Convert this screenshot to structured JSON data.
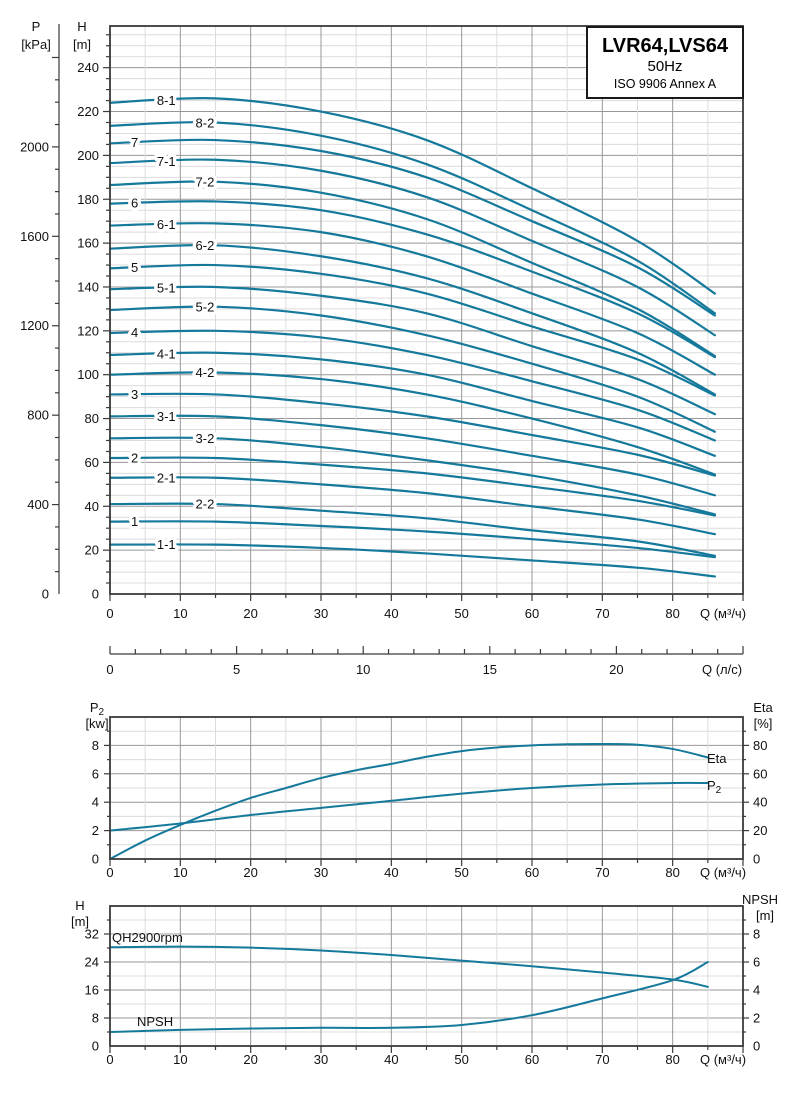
{
  "title_box": {
    "model": "LVR64,LVS64",
    "frequency": "50Hz",
    "standard": "ISO 9906 Annex A"
  },
  "colors": {
    "curve": "#15799b",
    "grid_minor": "#dcdcdc",
    "grid_major": "#989898",
    "axis_line": "#3a3a3a",
    "text": "#111111"
  },
  "chart_data": [
    {
      "type": "line",
      "id": "qh-family",
      "title": "Head vs flow curves for stage variants",
      "x": {
        "label": "Q (м³/ч)",
        "range": [
          0,
          90
        ],
        "ticks": [
          0,
          10,
          20,
          30,
          40,
          50,
          60,
          70,
          80
        ],
        "minor_step": 5
      },
      "x_secondary": {
        "label": "Q (л/с)",
        "ticks": [
          0,
          5,
          10,
          15,
          20
        ],
        "m3h_per_unit": 3.6,
        "minor_step": 1
      },
      "y_left": {
        "label": "H",
        "unit": "[m]",
        "range": [
          0,
          259
        ],
        "ticks": [
          0,
          20,
          40,
          60,
          80,
          100,
          120,
          140,
          160,
          180,
          200,
          220,
          240
        ],
        "minor_step": 5
      },
      "y_outer": {
        "label": "P",
        "unit": "[kPa]",
        "ticks": [
          0,
          400,
          800,
          1200,
          1600,
          2000
        ],
        "minor_step": 100,
        "kpa_per_m": 9.81
      },
      "grid": true,
      "series": [
        {
          "name": "8-1",
          "label_q": 8,
          "points": [
            [
              0,
              224
            ],
            [
              15,
              226
            ],
            [
              30,
              220
            ],
            [
              45,
              207
            ],
            [
              60,
              185
            ],
            [
              75,
              161
            ],
            [
              86,
              137
            ]
          ]
        },
        {
          "name": "8-2",
          "label_q": 13.5,
          "points": [
            [
              0,
              213.5
            ],
            [
              15,
              215
            ],
            [
              30,
              209
            ],
            [
              45,
              196
            ],
            [
              60,
              175
            ],
            [
              75,
              152
            ],
            [
              86,
              128
            ]
          ]
        },
        {
          "name": "7",
          "label_q": 3.5,
          "points": [
            [
              0,
              205.5
            ],
            [
              15,
              207
            ],
            [
              30,
              202
            ],
            [
              45,
              190
            ],
            [
              60,
              170
            ],
            [
              75,
              149
            ],
            [
              86,
              127
            ]
          ]
        },
        {
          "name": "7-1",
          "label_q": 8,
          "points": [
            [
              0,
              196.5
            ],
            [
              15,
              198
            ],
            [
              30,
              193
            ],
            [
              45,
              181
            ],
            [
              60,
              161
            ],
            [
              75,
              140
            ],
            [
              86,
              118
            ]
          ]
        },
        {
          "name": "7-2",
          "label_q": 13.5,
          "points": [
            [
              0,
              186.5
            ],
            [
              15,
              188
            ],
            [
              30,
              183
            ],
            [
              45,
              171
            ],
            [
              60,
              151
            ],
            [
              75,
              130
            ],
            [
              86,
              108.5
            ]
          ]
        },
        {
          "name": "6",
          "label_q": 3.5,
          "points": [
            [
              0,
              178
            ],
            [
              15,
              179
            ],
            [
              30,
              175
            ],
            [
              45,
              164
            ],
            [
              60,
              147
            ],
            [
              75,
              128
            ],
            [
              86,
              108
            ]
          ]
        },
        {
          "name": "6-1",
          "label_q": 8,
          "points": [
            [
              0,
              168
            ],
            [
              15,
              169
            ],
            [
              30,
              165
            ],
            [
              45,
              154
            ],
            [
              60,
              137
            ],
            [
              75,
              119
            ],
            [
              86,
              100
            ]
          ]
        },
        {
          "name": "6-2",
          "label_q": 13.5,
          "points": [
            [
              0,
              157.5
            ],
            [
              15,
              159
            ],
            [
              30,
              154
            ],
            [
              45,
              144
            ],
            [
              60,
              128
            ],
            [
              75,
              110
            ],
            [
              86,
              91
            ]
          ]
        },
        {
          "name": "5",
          "label_q": 3.5,
          "points": [
            [
              0,
              148.5
            ],
            [
              15,
              150
            ],
            [
              30,
              146
            ],
            [
              45,
              137
            ],
            [
              60,
              122
            ],
            [
              75,
              107
            ],
            [
              86,
              90.5
            ]
          ]
        },
        {
          "name": "5-1",
          "label_q": 8,
          "points": [
            [
              0,
              139
            ],
            [
              15,
              140
            ],
            [
              30,
              136
            ],
            [
              45,
              128
            ],
            [
              60,
              113
            ],
            [
              75,
              98
            ],
            [
              86,
              82
            ]
          ]
        },
        {
          "name": "5-2",
          "label_q": 13.5,
          "points": [
            [
              0,
              129.5
            ],
            [
              15,
              131
            ],
            [
              30,
              127
            ],
            [
              45,
              118
            ],
            [
              60,
              105
            ],
            [
              75,
              90
            ],
            [
              86,
              74
            ]
          ]
        },
        {
          "name": "4",
          "label_q": 3.5,
          "points": [
            [
              0,
              119
            ],
            [
              15,
              120
            ],
            [
              30,
              117
            ],
            [
              45,
              109
            ],
            [
              60,
              97
            ],
            [
              75,
              84
            ],
            [
              86,
              70
            ]
          ]
        },
        {
          "name": "4-1",
          "label_q": 8,
          "points": [
            [
              0,
              109
            ],
            [
              15,
              110
            ],
            [
              30,
              107
            ],
            [
              45,
              100
            ],
            [
              60,
              88
            ],
            [
              75,
              76
            ],
            [
              86,
              63
            ]
          ]
        },
        {
          "name": "4-2",
          "label_q": 13.5,
          "points": [
            [
              0,
              100
            ],
            [
              15,
              101
            ],
            [
              30,
              98
            ],
            [
              45,
              91
            ],
            [
              60,
              80
            ],
            [
              75,
              67
            ],
            [
              86,
              54.5
            ]
          ]
        },
        {
          "name": "3",
          "label_q": 3.5,
          "points": [
            [
              0,
              91
            ],
            [
              15,
              91
            ],
            [
              30,
              87
            ],
            [
              45,
              81
            ],
            [
              60,
              72.5
            ],
            [
              75,
              63.5
            ],
            [
              86,
              54
            ]
          ]
        },
        {
          "name": "3-1",
          "label_q": 8,
          "points": [
            [
              0,
              81
            ],
            [
              15,
              81
            ],
            [
              30,
              77
            ],
            [
              45,
              71
            ],
            [
              60,
              63
            ],
            [
              75,
              54.5
            ],
            [
              86,
              45
            ]
          ]
        },
        {
          "name": "3-2",
          "label_q": 13.5,
          "points": [
            [
              0,
              71
            ],
            [
              15,
              71
            ],
            [
              30,
              67
            ],
            [
              45,
              61
            ],
            [
              60,
              54
            ],
            [
              75,
              45
            ],
            [
              86,
              36.3
            ]
          ]
        },
        {
          "name": "2",
          "label_q": 3.5,
          "points": [
            [
              0,
              62
            ],
            [
              15,
              62
            ],
            [
              30,
              59
            ],
            [
              45,
              55
            ],
            [
              60,
              49
            ],
            [
              75,
              42.5
            ],
            [
              86,
              35.8
            ]
          ]
        },
        {
          "name": "2-1",
          "label_q": 8,
          "points": [
            [
              0,
              53
            ],
            [
              15,
              53
            ],
            [
              30,
              50
            ],
            [
              45,
              46
            ],
            [
              60,
              40
            ],
            [
              75,
              34
            ],
            [
              86,
              27.3
            ]
          ]
        },
        {
          "name": "2-2",
          "label_q": 13.5,
          "points": [
            [
              0,
              41
            ],
            [
              15,
              41
            ],
            [
              30,
              38
            ],
            [
              45,
              34.5
            ],
            [
              60,
              29
            ],
            [
              75,
              24
            ],
            [
              86,
              17.4
            ]
          ]
        },
        {
          "name": "1",
          "label_q": 3.5,
          "points": [
            [
              0,
              33
            ],
            [
              15,
              33
            ],
            [
              30,
              31
            ],
            [
              45,
              28.5
            ],
            [
              60,
              25
            ],
            [
              75,
              21
            ],
            [
              86,
              16.8
            ]
          ]
        },
        {
          "name": "1-1",
          "label_q": 8,
          "points": [
            [
              0,
              22.5
            ],
            [
              15,
              22.5
            ],
            [
              30,
              21
            ],
            [
              45,
              18.5
            ],
            [
              60,
              15.3
            ],
            [
              75,
              12
            ],
            [
              86,
              8
            ]
          ]
        }
      ]
    },
    {
      "type": "line",
      "id": "p2-eta",
      "title": "Shaft power and efficiency",
      "x": {
        "label": "Q (м³/ч)",
        "range": [
          0,
          90
        ],
        "ticks": [
          0,
          10,
          20,
          30,
          40,
          50,
          60,
          70,
          80
        ],
        "minor_step": 5
      },
      "y_left": {
        "label": "P₂",
        "unit": "[kw]",
        "range": [
          0,
          10
        ],
        "ticks": [
          0,
          2,
          4,
          6,
          8
        ],
        "minor_step": 1
      },
      "y_right": {
        "label": "Eta",
        "unit": "[%]",
        "range": [
          0,
          100
        ],
        "ticks": [
          0,
          20,
          40,
          60,
          80
        ],
        "minor_step": 10
      },
      "grid": true,
      "series": [
        {
          "name": "Eta",
          "label": "Eta",
          "axis": "right",
          "points": [
            [
              0,
              0
            ],
            [
              5,
              13
            ],
            [
              10,
              24
            ],
            [
              15,
              34
            ],
            [
              20,
              43
            ],
            [
              25,
              50
            ],
            [
              30,
              57
            ],
            [
              35,
              62.5
            ],
            [
              40,
              67
            ],
            [
              45,
              72
            ],
            [
              50,
              76
            ],
            [
              55,
              78.5
            ],
            [
              60,
              80
            ],
            [
              65,
              80.8
            ],
            [
              70,
              81
            ],
            [
              75,
              80.5
            ],
            [
              80,
              77.5
            ],
            [
              85,
              71.5
            ]
          ]
        },
        {
          "name": "P2",
          "label": "P₂",
          "axis": "left",
          "points": [
            [
              0,
              2.0
            ],
            [
              10,
              2.5
            ],
            [
              20,
              3.1
            ],
            [
              30,
              3.6
            ],
            [
              40,
              4.1
            ],
            [
              50,
              4.6
            ],
            [
              60,
              5.0
            ],
            [
              70,
              5.25
            ],
            [
              80,
              5.35
            ],
            [
              85,
              5.35
            ]
          ]
        }
      ]
    },
    {
      "type": "line",
      "id": "qh-npsh",
      "title": "Single stage head and NPSH",
      "x": {
        "label": "Q (м³/ч)",
        "range": [
          0,
          90
        ],
        "ticks": [
          0,
          10,
          20,
          30,
          40,
          50,
          60,
          70,
          80
        ],
        "minor_step": 5
      },
      "y_left": {
        "label": "H",
        "unit": "[m]",
        "range": [
          0,
          40
        ],
        "ticks": [
          0,
          8,
          16,
          24,
          32
        ],
        "minor_step": 4
      },
      "y_right": {
        "label": "NPSH",
        "unit": "[m]",
        "range": [
          0,
          10
        ],
        "ticks": [
          0,
          2,
          4,
          6,
          8
        ],
        "minor_step": 1
      },
      "grid": true,
      "series": [
        {
          "name": "QH2900rpm",
          "label": "QH2900rpm",
          "axis": "left",
          "points": [
            [
              0,
              28.2
            ],
            [
              10,
              28.4
            ],
            [
              20,
              28.1
            ],
            [
              30,
              27.3
            ],
            [
              40,
              26.0
            ],
            [
              50,
              24.4
            ],
            [
              60,
              22.8
            ],
            [
              70,
              21.0
            ],
            [
              80,
              19.0
            ],
            [
              85,
              16.9
            ]
          ]
        },
        {
          "name": "NPSH",
          "label": "NPSH",
          "axis": "right",
          "points": [
            [
              0,
              1.0
            ],
            [
              10,
              1.15
            ],
            [
              20,
              1.25
            ],
            [
              30,
              1.3
            ],
            [
              40,
              1.3
            ],
            [
              50,
              1.5
            ],
            [
              60,
              2.2
            ],
            [
              70,
              3.4
            ],
            [
              80,
              4.7
            ],
            [
              85,
              6.0
            ]
          ]
        }
      ]
    }
  ]
}
